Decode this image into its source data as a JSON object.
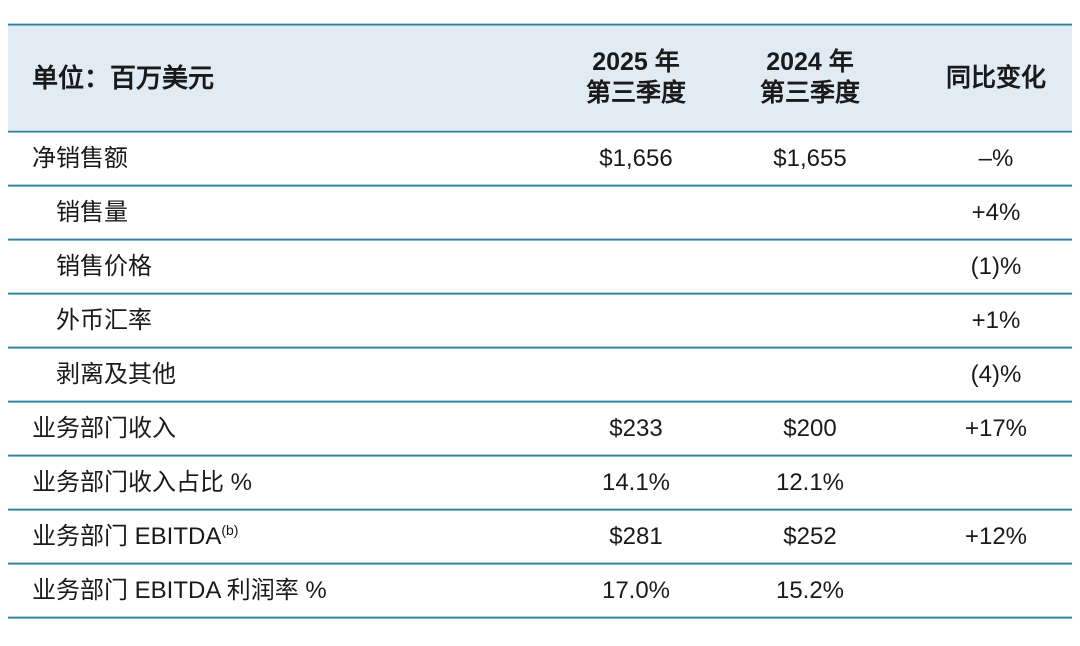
{
  "table": {
    "unit_header": "单位：百万美元",
    "columns": [
      {
        "line1": "2025 年",
        "line2": "第三季度"
      },
      {
        "line1": "2024 年",
        "line2": "第三季度"
      },
      {
        "line1": "同比变化",
        "line2": ""
      }
    ],
    "rows": [
      {
        "label": "净销售额",
        "sup": "",
        "indent": false,
        "q3_2025": "$1,656",
        "q3_2024": "$1,655",
        "yoy": "–%"
      },
      {
        "label": "销售量",
        "sup": "",
        "indent": true,
        "q3_2025": "",
        "q3_2024": "",
        "yoy": "+4%"
      },
      {
        "label": "销售价格",
        "sup": "",
        "indent": true,
        "q3_2025": "",
        "q3_2024": "",
        "yoy": "(1)%"
      },
      {
        "label": "外币汇率",
        "sup": "",
        "indent": true,
        "q3_2025": "",
        "q3_2024": "",
        "yoy": "+1%"
      },
      {
        "label": "剥离及其他",
        "sup": "",
        "indent": true,
        "q3_2025": "",
        "q3_2024": "",
        "yoy": "(4)%"
      },
      {
        "label": "业务部门收入",
        "sup": "",
        "indent": false,
        "q3_2025": "$233",
        "q3_2024": "$200",
        "yoy": "+17%"
      },
      {
        "label": "业务部门收入占比 %",
        "sup": "",
        "indent": false,
        "q3_2025": "14.1%",
        "q3_2024": "12.1%",
        "yoy": ""
      },
      {
        "label": "业务部门 EBITDA",
        "sup": "(b)",
        "indent": false,
        "q3_2025": "$281",
        "q3_2024": "$252",
        "yoy": "+12%"
      },
      {
        "label": "业务部门 EBITDA 利润率 %",
        "sup": "",
        "indent": false,
        "q3_2025": "17.0%",
        "q3_2024": "15.2%",
        "yoy": ""
      }
    ]
  },
  "colors": {
    "header_bg": "#e0ebf4",
    "divider": "#35809e",
    "text": "#1a1a1a"
  }
}
